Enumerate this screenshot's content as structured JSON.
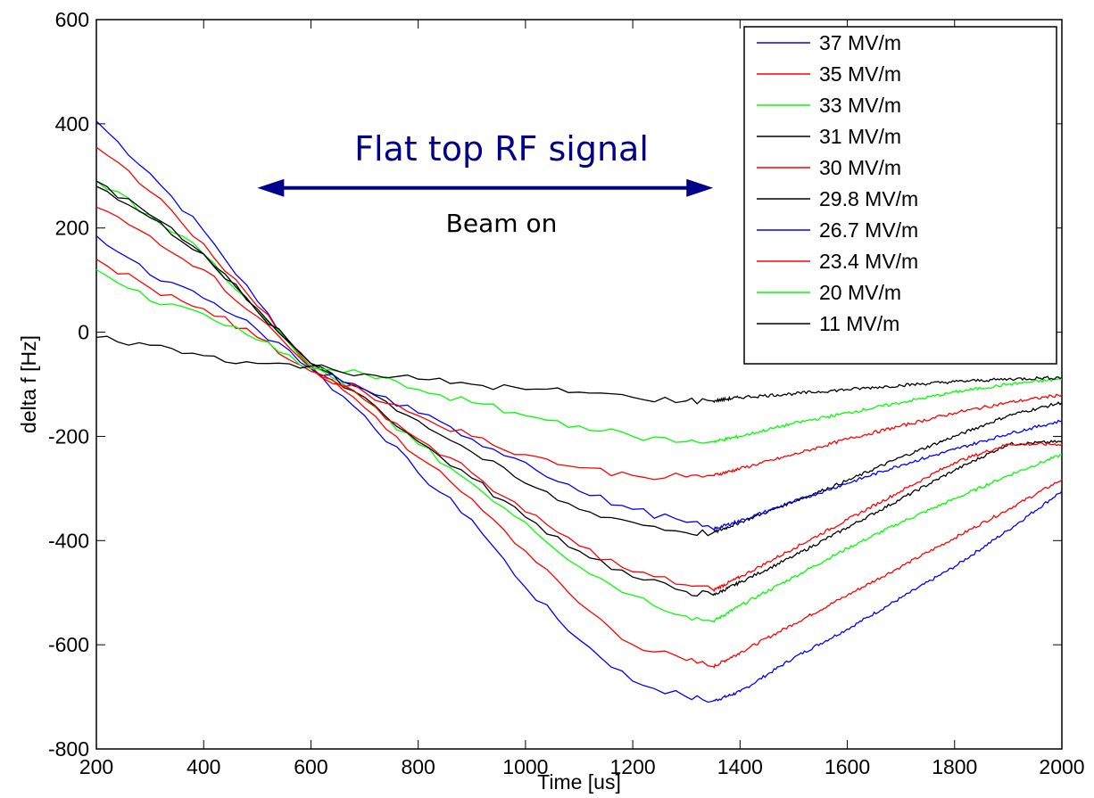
{
  "chart_data": {
    "type": "line",
    "xlabel": "Time [us]",
    "ylabel": "delta f [Hz]",
    "xlim": [
      200,
      2000
    ],
    "ylim": [
      -800,
      600
    ],
    "xticks": [
      200,
      400,
      600,
      800,
      1000,
      1200,
      1400,
      1600,
      1800,
      2000
    ],
    "yticks": [
      600,
      400,
      200,
      0,
      -200,
      -400,
      -600,
      -800
    ],
    "grid": false,
    "legend_position": "top-right",
    "annotations": {
      "arrow_label": "Flat top RF signal",
      "arrow_sublabel": "Beam on",
      "arrow_x": [
        500,
        1350
      ],
      "arrow_y": 277,
      "arrow_color": "#00008b"
    },
    "series": [
      {
        "name": "37 MV/m",
        "color": "#0000ff",
        "x": [
          200,
          300,
          400,
          500,
          600,
          700,
          800,
          900,
          1000,
          1100,
          1200,
          1300,
          1350,
          1400,
          1500,
          1600,
          1700,
          1800,
          1900,
          2000
        ],
        "y": [
          405,
          305,
          195,
          60,
          -70,
          -160,
          -270,
          -360,
          -490,
          -590,
          -670,
          -700,
          -708,
          -690,
          -625,
          -570,
          -510,
          -450,
          -380,
          -305
        ]
      },
      {
        "name": "35 MV/m",
        "color": "#ff0000",
        "x": [
          200,
          300,
          400,
          500,
          600,
          700,
          800,
          900,
          1000,
          1100,
          1200,
          1300,
          1350,
          1400,
          1500,
          1600,
          1700,
          1800,
          1900,
          2000
        ],
        "y": [
          355,
          270,
          170,
          50,
          -65,
          -145,
          -240,
          -320,
          -420,
          -520,
          -600,
          -630,
          -642,
          -615,
          -560,
          -505,
          -450,
          -395,
          -340,
          -283
        ]
      },
      {
        "name": "33 MV/m",
        "color": "#00ff00",
        "x": [
          200,
          300,
          400,
          500,
          600,
          700,
          800,
          900,
          1000,
          1100,
          1200,
          1300,
          1350,
          1400,
          1500,
          1600,
          1700,
          1800,
          1900,
          2000
        ],
        "y": [
          290,
          225,
          150,
          40,
          -65,
          -130,
          -215,
          -290,
          -365,
          -450,
          -505,
          -545,
          -555,
          -525,
          -470,
          -415,
          -365,
          -320,
          -275,
          -235
        ]
      },
      {
        "name": "31 MV/m",
        "color": "#000000",
        "x": [
          200,
          300,
          400,
          500,
          600,
          700,
          800,
          900,
          1000,
          1100,
          1200,
          1300,
          1350,
          1400,
          1500,
          1600,
          1700,
          1800,
          1900,
          2000
        ],
        "y": [
          290,
          225,
          150,
          45,
          -60,
          -125,
          -210,
          -280,
          -355,
          -420,
          -470,
          -498,
          -505,
          -480,
          -430,
          -375,
          -320,
          -265,
          -215,
          -210
        ]
      },
      {
        "name": "30 MV/m",
        "color": "#ff0000",
        "x": [
          200,
          300,
          400,
          500,
          600,
          700,
          800,
          900,
          1000,
          1100,
          1200,
          1300,
          1350,
          1400,
          1500,
          1600,
          1700,
          1800,
          1900,
          2000
        ],
        "y": [
          240,
          185,
          120,
          30,
          -70,
          -130,
          -205,
          -270,
          -345,
          -410,
          -460,
          -485,
          -495,
          -470,
          -415,
          -360,
          -305,
          -250,
          -215,
          -215
        ]
      },
      {
        "name": "29.8 MV/m",
        "color": "#000000",
        "x": [
          200,
          300,
          400,
          500,
          600,
          700,
          800,
          900,
          1000,
          1100,
          1200,
          1300,
          1350,
          1400,
          1500,
          1600,
          1700,
          1800,
          1900,
          2000
        ],
        "y": [
          280,
          220,
          150,
          40,
          -60,
          -110,
          -170,
          -230,
          -290,
          -340,
          -365,
          -385,
          -385,
          -365,
          -325,
          -285,
          -240,
          -200,
          -160,
          -135
        ]
      },
      {
        "name": "26.7 MV/m",
        "color": "#0000ff",
        "x": [
          200,
          300,
          400,
          500,
          600,
          700,
          800,
          900,
          1000,
          1100,
          1200,
          1300,
          1350,
          1400,
          1500,
          1600,
          1700,
          1800,
          1900,
          2000
        ],
        "y": [
          185,
          110,
          65,
          5,
          -70,
          -110,
          -155,
          -205,
          -250,
          -305,
          -340,
          -365,
          -378,
          -362,
          -325,
          -290,
          -255,
          -225,
          -195,
          -170
        ]
      },
      {
        "name": "23.4 MV/m",
        "color": "#ff0000",
        "x": [
          200,
          300,
          400,
          500,
          600,
          700,
          800,
          900,
          1000,
          1100,
          1200,
          1300,
          1350,
          1400,
          1500,
          1600,
          1700,
          1800,
          1900,
          2000
        ],
        "y": [
          140,
          85,
          45,
          -10,
          -75,
          -115,
          -160,
          -200,
          -235,
          -260,
          -275,
          -278,
          -275,
          -262,
          -235,
          -205,
          -180,
          -155,
          -135,
          -120
        ]
      },
      {
        "name": "20 MV/m",
        "color": "#00ff00",
        "x": [
          200,
          300,
          400,
          500,
          600,
          700,
          800,
          900,
          1000,
          1100,
          1200,
          1300,
          1350,
          1400,
          1500,
          1600,
          1700,
          1800,
          1900,
          2000
        ],
        "y": [
          120,
          60,
          35,
          -15,
          -70,
          -80,
          -110,
          -135,
          -160,
          -180,
          -200,
          -210,
          -210,
          -200,
          -175,
          -155,
          -135,
          -115,
          -100,
          -90
        ]
      },
      {
        "name": "11 MV/m",
        "color": "#000000",
        "x": [
          200,
          300,
          400,
          500,
          600,
          700,
          800,
          900,
          1000,
          1100,
          1200,
          1300,
          1350,
          1400,
          1500,
          1600,
          1700,
          1800,
          1900,
          2000
        ],
        "y": [
          -10,
          -25,
          -45,
          -60,
          -65,
          -80,
          -90,
          -100,
          -110,
          -115,
          -125,
          -132,
          -132,
          -125,
          -118,
          -110,
          -102,
          -95,
          -90,
          -87
        ]
      }
    ]
  }
}
